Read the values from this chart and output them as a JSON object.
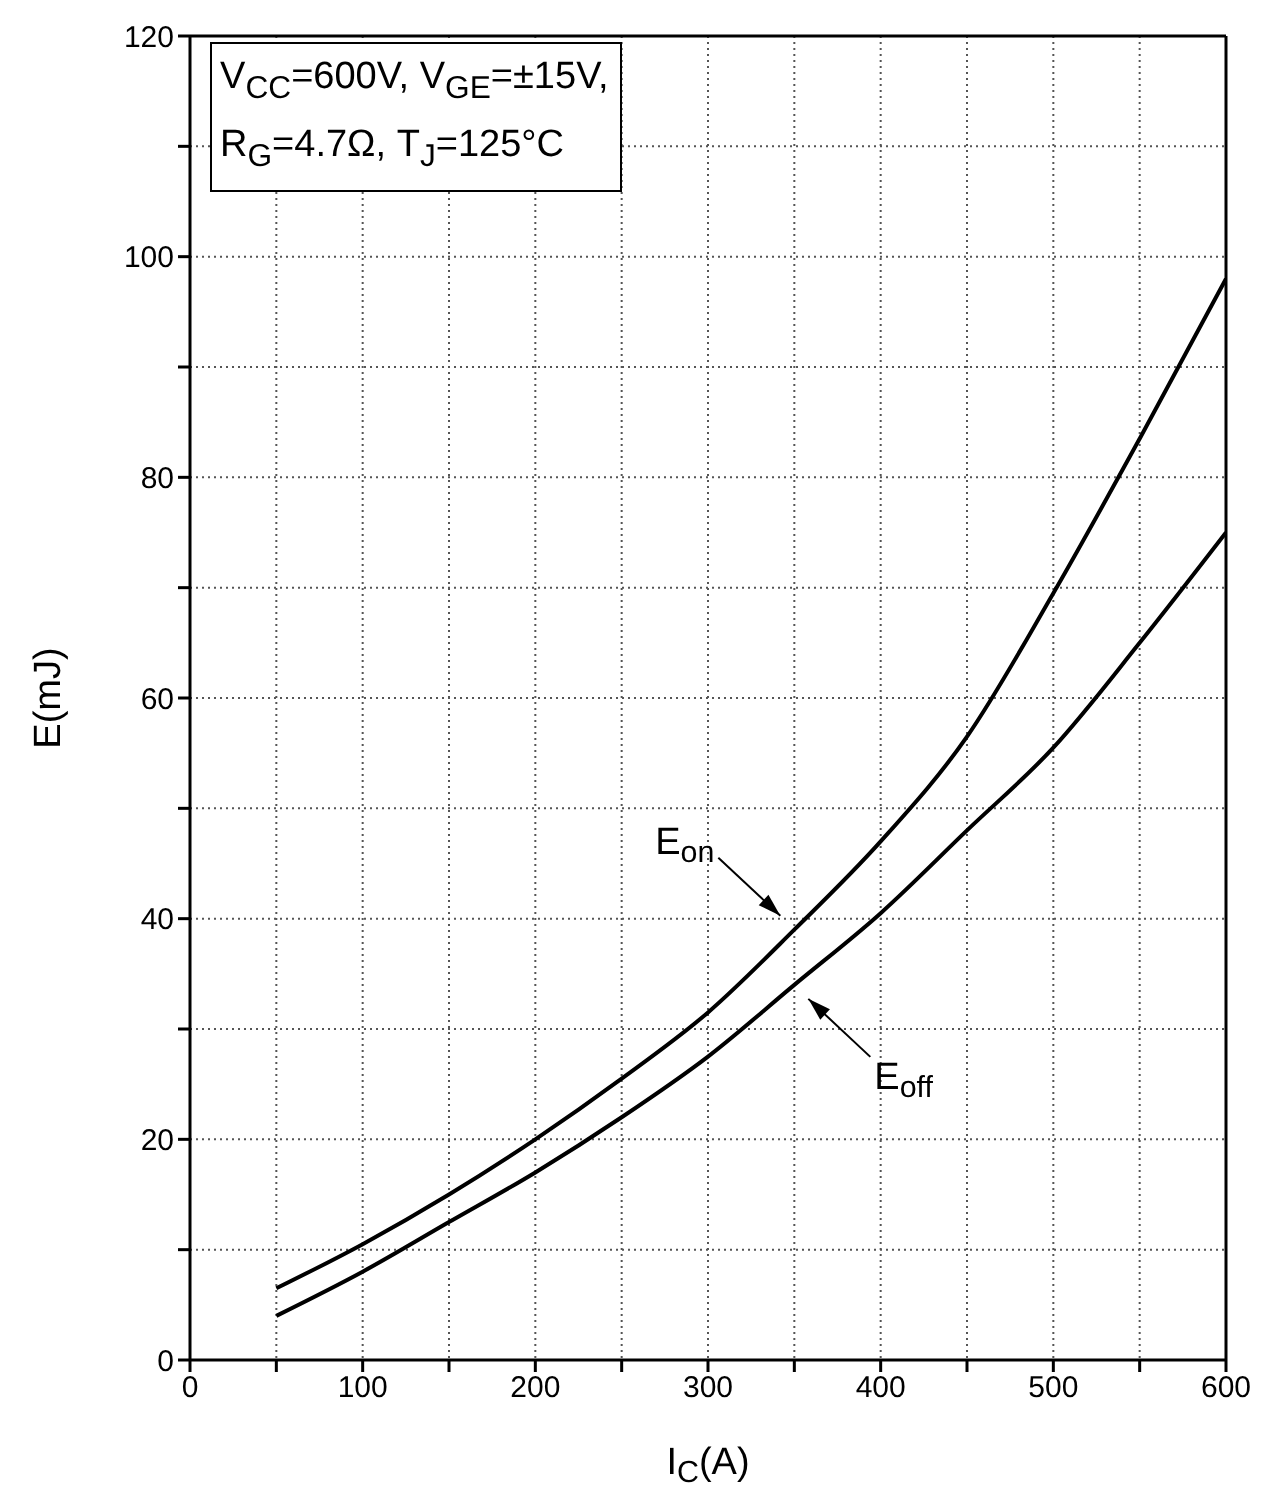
{
  "chart_data": {
    "type": "line",
    "xlabel": "I$_{C}$(A)",
    "ylabel": "E(mJ)",
    "x": [
      50,
      100,
      150,
      200,
      250,
      300,
      350,
      400,
      450,
      500,
      550,
      600
    ],
    "series": [
      {
        "name": "E$_{on}$",
        "color": "#000000",
        "values": [
          6.5,
          10.5,
          15,
          20,
          25.5,
          31.5,
          39,
          47,
          56.5,
          69.5,
          83.5,
          98
        ]
      },
      {
        "name": "E$_{off}$",
        "color": "#000000",
        "values": [
          4,
          8,
          12.5,
          17,
          22,
          27.5,
          34,
          40.5,
          48,
          55.5,
          65,
          75
        ]
      }
    ],
    "xlim": [
      0,
      600
    ],
    "ylim": [
      0,
      120
    ],
    "xticks": [
      0,
      {
        "value": 50,
        "label": null
      },
      100,
      {
        "value": 150,
        "label": null
      },
      200,
      {
        "value": 250,
        "label": null
      },
      300,
      {
        "value": 350,
        "label": null
      },
      400,
      {
        "value": 450,
        "label": null
      },
      500,
      {
        "value": 550,
        "label": null
      },
      600
    ],
    "yticks": [
      0,
      {
        "value": 10,
        "label": null
      },
      20,
      {
        "value": 30,
        "label": null
      },
      40,
      {
        "value": 50,
        "label": null
      },
      60,
      {
        "value": 70,
        "label": null
      },
      80,
      {
        "value": 90,
        "label": null
      },
      100,
      {
        "value": 110,
        "label": null
      },
      120
    ],
    "grid": true,
    "marker": "none",
    "line_style": "solid",
    "annotations": [
      "V$_{CC}$=600V, V$_{GE}$=±15V,",
      "R$_{G}$=4.7Ω, T$_{J}$=125°C"
    ]
  }
}
